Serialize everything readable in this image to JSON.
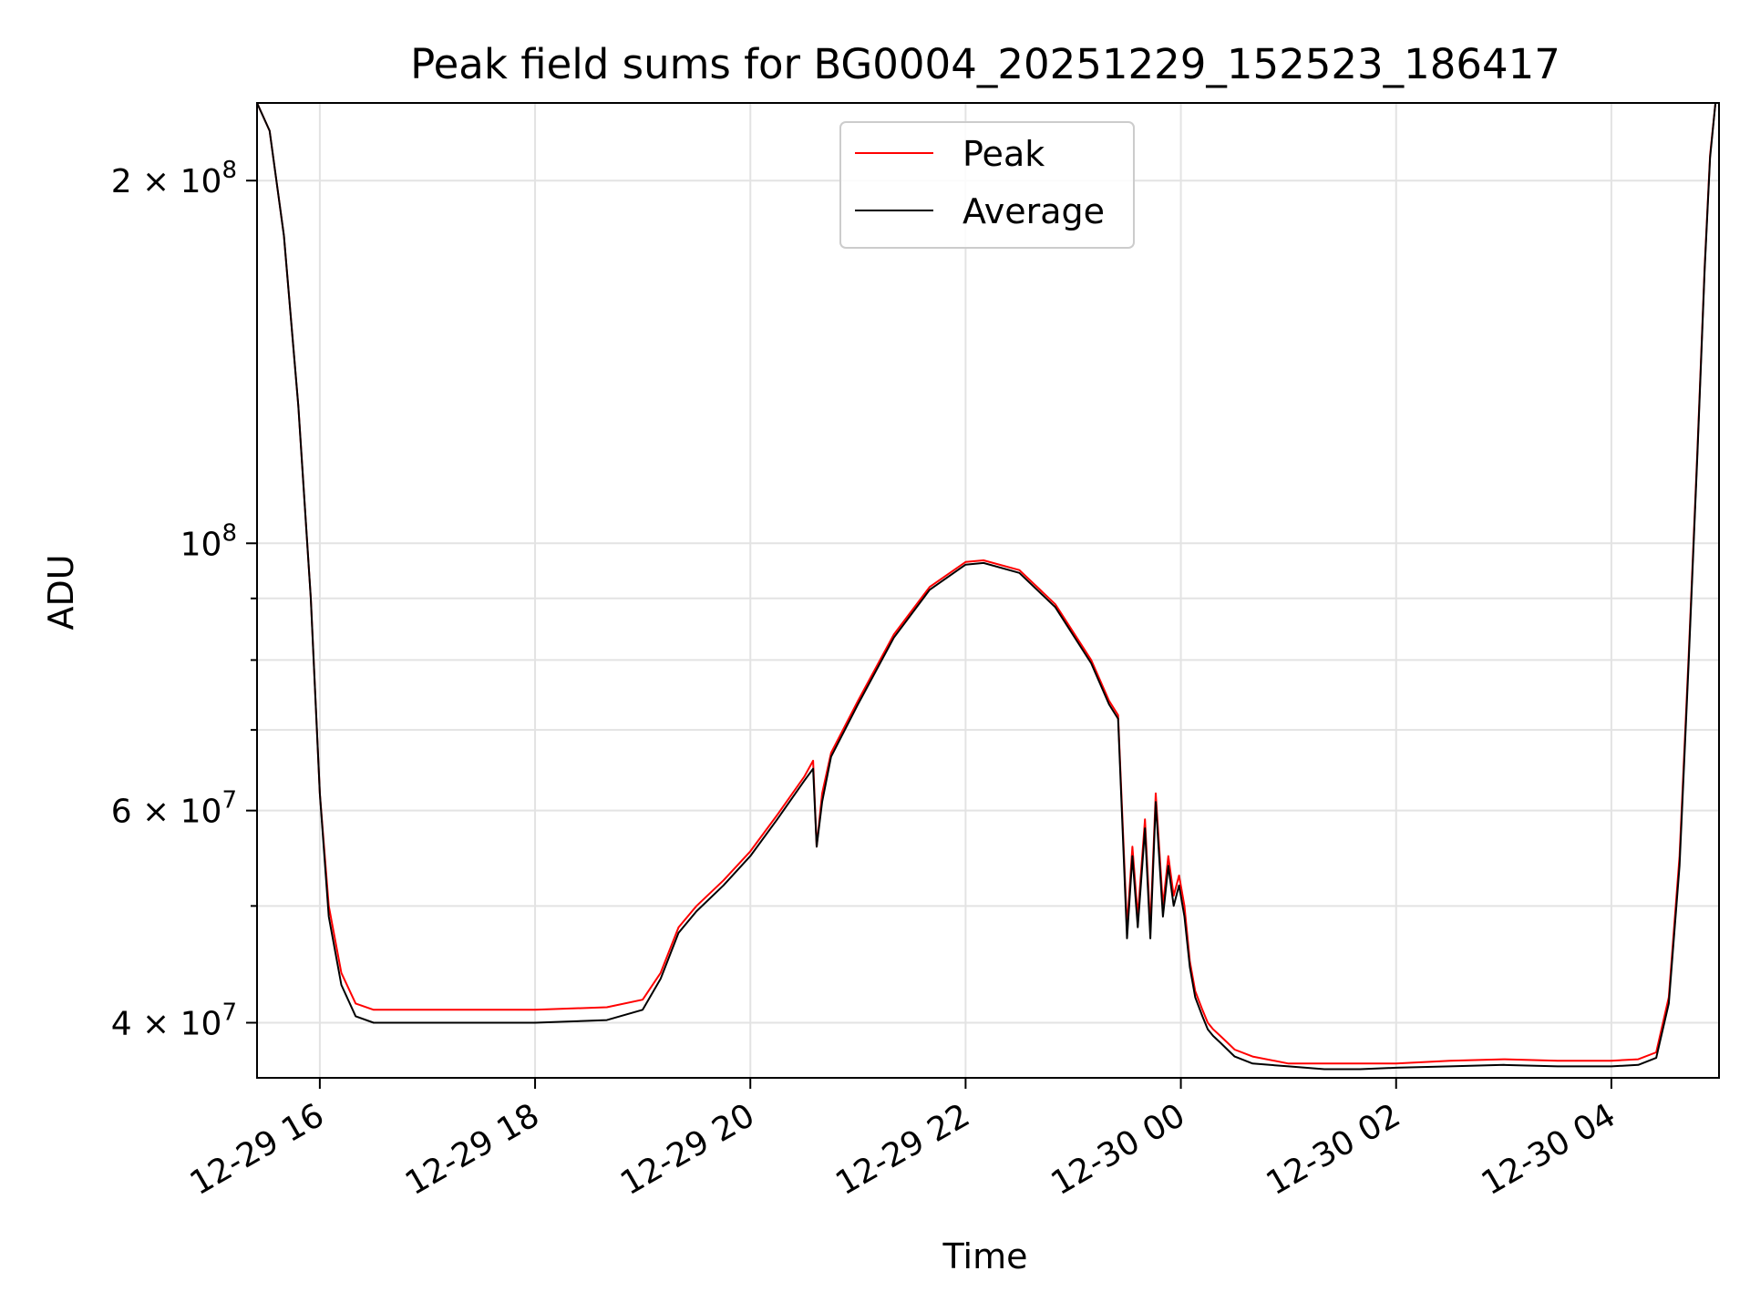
{
  "chart_data": {
    "type": "line",
    "title": "Peak field sums for BG0004_20251229_152523_186417",
    "xlabel": "Time",
    "ylabel": "ADU",
    "y_scale": "log",
    "x_unit": "hours, 2025-12-29 00:00 origin",
    "xlim": [
      "12-29 15:25",
      "12-30 05:00"
    ],
    "ylim": [
      36000000,
      232000000
    ],
    "x_ticks": [
      {
        "value": "12-29 16:00",
        "label": "12-29 16"
      },
      {
        "value": "12-29 18:00",
        "label": "12-29 18"
      },
      {
        "value": "12-29 20:00",
        "label": "12-29 20"
      },
      {
        "value": "12-29 22:00",
        "label": "12-29 22"
      },
      {
        "value": "12-30 00:00",
        "label": "12-30 00"
      },
      {
        "value": "12-30 02:00",
        "label": "12-30 02"
      },
      {
        "value": "12-30 04:00",
        "label": "12-30 04"
      }
    ],
    "y_major_ticks": [
      {
        "value": 40000000,
        "base": "4 × 10",
        "exp": "7"
      },
      {
        "value": 60000000,
        "base": "6 × 10",
        "exp": "7"
      },
      {
        "value": 100000000,
        "base": "10",
        "exp": "8"
      },
      {
        "value": 200000000,
        "base": "2 × 10",
        "exp": "8"
      }
    ],
    "y_minor_grid": [
      50000000,
      70000000,
      80000000,
      90000000
    ],
    "grid": true,
    "legend": {
      "position": "upper center",
      "entries": [
        "Peak",
        "Average"
      ]
    },
    "series": [
      {
        "name": "Peak",
        "color": "#ff0000",
        "x": [
          "12-29 15:25",
          "12-29 15:32",
          "12-29 15:40",
          "12-29 15:48",
          "12-29 15:55",
          "12-29 16:00",
          "12-29 16:05",
          "12-29 16:12",
          "12-29 16:20",
          "12-29 16:30",
          "12-29 17:00",
          "12-29 18:00",
          "12-29 18:40",
          "12-29 19:00",
          "12-29 19:10",
          "12-29 19:20",
          "12-29 19:30",
          "12-29 19:45",
          "12-29 20:00",
          "12-29 20:15",
          "12-29 20:30",
          "12-29 20:35",
          "12-29 20:37",
          "12-29 20:40",
          "12-29 20:45",
          "12-29 21:00",
          "12-29 21:20",
          "12-29 21:40",
          "12-29 22:00",
          "12-29 22:10",
          "12-29 22:30",
          "12-29 22:50",
          "12-29 23:10",
          "12-29 23:20",
          "12-29 23:25",
          "12-29 23:30",
          "12-29 23:33",
          "12-29 23:36",
          "12-29 23:40",
          "12-29 23:43",
          "12-29 23:46",
          "12-29 23:50",
          "12-29 23:53",
          "12-29 23:56",
          "12-29 23:59",
          "12-30 00:02",
          "12-30 00:05",
          "12-30 00:08",
          "12-30 00:12",
          "12-30 00:15",
          "12-30 00:18",
          "12-30 00:22",
          "12-30 00:26",
          "12-30 00:30",
          "12-30 00:40",
          "12-30 01:00",
          "12-30 01:20",
          "12-30 01:40",
          "12-30 02:00",
          "12-30 02:30",
          "12-30 03:00",
          "12-30 03:30",
          "12-30 04:00",
          "12-30 04:15",
          "12-30 04:25",
          "12-30 04:32",
          "12-30 04:38",
          "12-30 04:43",
          "12-30 04:48",
          "12-30 04:52",
          "12-30 04:55",
          "12-30 04:58",
          "12-30 05:00"
        ],
        "y": [
          232000000,
          220000000,
          180000000,
          130000000,
          90000000,
          62000000,
          50000000,
          44000000,
          41500000,
          41000000,
          41000000,
          41000000,
          41200000,
          41800000,
          44000000,
          48000000,
          50000000,
          52500000,
          55500000,
          59500000,
          64000000,
          66000000,
          56000000,
          62000000,
          67000000,
          74000000,
          84000000,
          92000000,
          96500000,
          96800000,
          95000000,
          89000000,
          80000000,
          74000000,
          72000000,
          48000000,
          56000000,
          49000000,
          59000000,
          48000000,
          62000000,
          50000000,
          55000000,
          51000000,
          53000000,
          50000000,
          45000000,
          42500000,
          41000000,
          40000000,
          39500000,
          39000000,
          38500000,
          38000000,
          37500000,
          37000000,
          37000000,
          37000000,
          37000000,
          37200000,
          37300000,
          37200000,
          37200000,
          37300000,
          37800000,
          42000000,
          55000000,
          80000000,
          120000000,
          170000000,
          210000000,
          232000000,
          232000000
        ]
      },
      {
        "name": "Average",
        "color": "#000000",
        "x": [
          "12-29 15:25",
          "12-29 15:32",
          "12-29 15:40",
          "12-29 15:48",
          "12-29 15:55",
          "12-29 16:00",
          "12-29 16:05",
          "12-29 16:12",
          "12-29 16:20",
          "12-29 16:30",
          "12-29 17:00",
          "12-29 18:00",
          "12-29 18:40",
          "12-29 19:00",
          "12-29 19:10",
          "12-29 19:20",
          "12-29 19:30",
          "12-29 19:45",
          "12-29 20:00",
          "12-29 20:15",
          "12-29 20:30",
          "12-29 20:35",
          "12-29 20:37",
          "12-29 20:40",
          "12-29 20:45",
          "12-29 21:00",
          "12-29 21:20",
          "12-29 21:40",
          "12-29 22:00",
          "12-29 22:10",
          "12-29 22:30",
          "12-29 22:50",
          "12-29 23:10",
          "12-29 23:20",
          "12-29 23:25",
          "12-29 23:30",
          "12-29 23:33",
          "12-29 23:36",
          "12-29 23:40",
          "12-29 23:43",
          "12-29 23:46",
          "12-29 23:50",
          "12-29 23:53",
          "12-29 23:56",
          "12-29 23:59",
          "12-30 00:02",
          "12-30 00:05",
          "12-30 00:08",
          "12-30 00:12",
          "12-30 00:15",
          "12-30 00:18",
          "12-30 00:22",
          "12-30 00:26",
          "12-30 00:30",
          "12-30 00:40",
          "12-30 01:00",
          "12-30 01:20",
          "12-30 01:40",
          "12-30 02:00",
          "12-30 02:30",
          "12-30 03:00",
          "12-30 03:30",
          "12-30 04:00",
          "12-30 04:15",
          "12-30 04:25",
          "12-30 04:32",
          "12-30 04:38",
          "12-30 04:43",
          "12-30 04:48",
          "12-30 04:52",
          "12-30 04:55",
          "12-30 04:58",
          "12-30 05:00"
        ],
        "y": [
          232000000,
          220000000,
          180000000,
          130000000,
          90000000,
          62000000,
          49000000,
          43000000,
          40500000,
          40000000,
          40000000,
          40000000,
          40200000,
          41000000,
          43500000,
          47500000,
          49500000,
          52000000,
          55000000,
          59000000,
          63500000,
          65000000,
          56000000,
          61000000,
          66500000,
          73500000,
          83500000,
          91500000,
          96000000,
          96300000,
          94500000,
          88500000,
          79500000,
          73500000,
          71500000,
          47000000,
          55000000,
          48000000,
          58000000,
          47000000,
          61000000,
          49000000,
          54000000,
          50000000,
          52000000,
          49000000,
          44500000,
          42000000,
          40500000,
          39500000,
          39000000,
          38500000,
          38000000,
          37500000,
          37000000,
          36800000,
          36600000,
          36600000,
          36700000,
          36800000,
          36900000,
          36800000,
          36800000,
          36900000,
          37400000,
          41500000,
          54000000,
          79000000,
          119000000,
          169000000,
          209000000,
          232000000,
          232000000
        ]
      }
    ]
  }
}
